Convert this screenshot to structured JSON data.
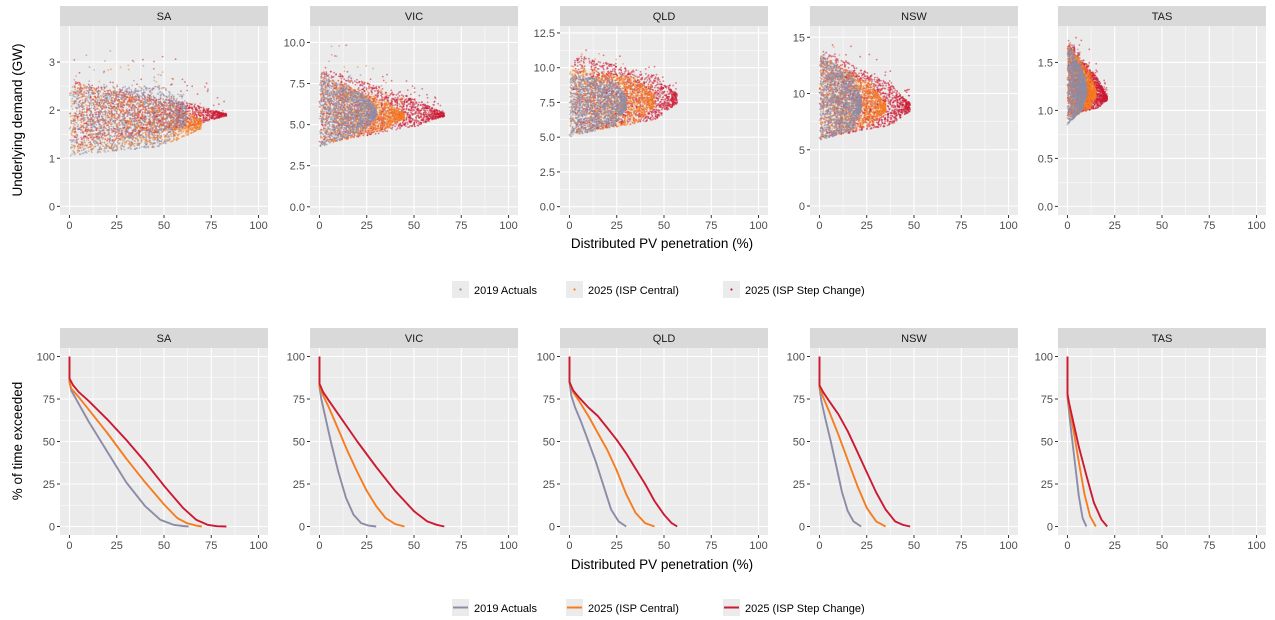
{
  "colors": {
    "2019 Actuals": "#8c8ca8",
    "2025 (ISP Central)": "#f57c20",
    "2025 (ISP Step Change)": "#cc1a33",
    "panel_bg": "#ebebeb",
    "strip_bg": "#d9d9d9",
    "grid": "#ffffff"
  },
  "chart_data": [
    {
      "type": "scatter",
      "xlabel": "Distributed PV penetration (%)",
      "ylabel": "Underlying demand (GW)",
      "x_ticks": [
        0,
        25,
        50,
        75,
        100
      ],
      "xlim": [
        -5,
        105
      ],
      "legend": {
        "placement": "bottom",
        "entries": [
          "2019 Actuals",
          "2025 (ISP Central)",
          "2025 (ISP Step Change)"
        ]
      },
      "facets": [
        {
          "name": "SA",
          "ylim": [
            -0.18,
            3.75
          ],
          "y_ticks": [
            "0",
            "1",
            "2",
            "3"
          ],
          "y_tick_values": [
            0,
            1,
            2,
            3
          ],
          "series": [
            {
              "name": "2019 Actuals",
              "x_range": [
                0,
                62
              ],
              "y_low": [
                1.05,
                1.3
              ],
              "y_high": [
                2.5,
                2.5
              ],
              "peak": 3.45
            },
            {
              "name": "2025 (ISP Central)",
              "x_range": [
                0,
                70
              ],
              "y_low": [
                1.1,
                1.4
              ],
              "y_high": [
                2.6,
                2.0
              ],
              "peak": 3.4
            },
            {
              "name": "2025 (ISP Step Change)",
              "x_range": [
                2,
                83
              ],
              "y_low": [
                1.2,
                1.8
              ],
              "y_high": [
                2.6,
                2.0
              ],
              "peak": 3.6
            }
          ]
        },
        {
          "name": "VIC",
          "ylim": [
            -0.5,
            11.0
          ],
          "y_ticks": [
            "0.0",
            "2.5",
            "5.0",
            "7.5",
            "10.0"
          ],
          "y_tick_values": [
            0,
            2.5,
            5,
            7.5,
            10
          ],
          "series": [
            {
              "name": "2019 Actuals",
              "x_range": [
                0,
                30
              ],
              "y_low": [
                3.6,
                4.9
              ],
              "y_high": [
                8.0,
                6.5
              ],
              "peak": 10.4
            },
            {
              "name": "2025 (ISP Central)",
              "x_range": [
                0,
                45
              ],
              "y_low": [
                3.7,
                5.0
              ],
              "y_high": [
                8.0,
                6.0
              ],
              "peak": 10.0
            },
            {
              "name": "2025 (ISP Step Change)",
              "x_range": [
                0,
                66
              ],
              "y_low": [
                3.8,
                5.2
              ],
              "y_high": [
                8.5,
                6.0
              ],
              "peak": 10.4
            }
          ]
        },
        {
          "name": "QLD",
          "ylim": [
            -0.6,
            13.0
          ],
          "y_ticks": [
            "0.0",
            "2.5",
            "5.0",
            "7.5",
            "10.0",
            "12.5"
          ],
          "y_tick_values": [
            0,
            2.5,
            5,
            7.5,
            10,
            12.5
          ],
          "series": [
            {
              "name": "2019 Actuals",
              "x_range": [
                0,
                30
              ],
              "y_low": [
                5.0,
                6.0
              ],
              "y_high": [
                9.5,
                9.0
              ],
              "peak": 10.3
            },
            {
              "name": "2025 (ISP Central)",
              "x_range": [
                0,
                45
              ],
              "y_low": [
                5.2,
                6.2
              ],
              "y_high": [
                10.2,
                9.0
              ],
              "peak": 11.5
            },
            {
              "name": "2025 (ISP Step Change)",
              "x_range": [
                2,
                57
              ],
              "y_low": [
                5.3,
                6.5
              ],
              "y_high": [
                11.0,
                9.0
              ],
              "peak": 12.0
            }
          ]
        },
        {
          "name": "NSW",
          "ylim": [
            -0.8,
            16.0
          ],
          "y_ticks": [
            "0",
            "5",
            "10",
            "15"
          ],
          "y_tick_values": [
            0,
            5,
            10,
            15
          ],
          "series": [
            {
              "name": "2019 Actuals",
              "x_range": [
                0,
                22
              ],
              "y_low": [
                5.8,
                7.0
              ],
              "y_high": [
                13.5,
                11.0
              ],
              "peak": 14.0
            },
            {
              "name": "2025 (ISP Central)",
              "x_range": [
                0,
                35
              ],
              "y_low": [
                5.9,
                7.5
              ],
              "y_high": [
                13.5,
                10.0
              ],
              "peak": 14.6
            },
            {
              "name": "2025 (ISP Step Change)",
              "x_range": [
                0,
                48
              ],
              "y_low": [
                6.0,
                7.5
              ],
              "y_high": [
                14.0,
                10.0
              ],
              "peak": 14.9
            }
          ]
        },
        {
          "name": "TAS",
          "ylim": [
            -0.09,
            1.88
          ],
          "y_ticks": [
            "0.0",
            "0.5",
            "1.0",
            "1.5"
          ],
          "y_tick_values": [
            0,
            0.5,
            1,
            1.5
          ],
          "series": [
            {
              "name": "2019 Actuals",
              "x_range": [
                0,
                10
              ],
              "y_low": [
                0.85,
                1.05
              ],
              "y_high": [
                1.7,
                1.35
              ],
              "peak": 1.75
            },
            {
              "name": "2025 (ISP Central)",
              "x_range": [
                0,
                15
              ],
              "y_low": [
                0.9,
                1.05
              ],
              "y_high": [
                1.7,
                1.3
              ],
              "peak": 1.75
            },
            {
              "name": "2025 (ISP Step Change)",
              "x_range": [
                0,
                21
              ],
              "y_low": [
                0.95,
                1.05
              ],
              "y_high": [
                1.75,
                1.2
              ],
              "peak": 1.8
            }
          ]
        }
      ]
    },
    {
      "type": "line",
      "xlabel": "Distributed PV penetration (%)",
      "ylabel": "% of time exceeded",
      "x_ticks": [
        0,
        25,
        50,
        75,
        100
      ],
      "y_ticks": [
        0,
        25,
        50,
        75,
        100
      ],
      "xlim": [
        -5,
        105
      ],
      "ylim": [
        -5,
        105
      ],
      "legend": {
        "placement": "bottom",
        "entries": [
          "2019 Actuals",
          "2025 (ISP Central)",
          "2025 (ISP Step Change)"
        ]
      },
      "facets": [
        {
          "name": "SA",
          "series": [
            {
              "name": "2019 Actuals",
              "x": [
                0,
                0,
                1,
                5,
                10,
                20,
                30,
                40,
                48,
                55,
                60,
                63
              ],
              "y": [
                100,
                85,
                80,
                72,
                62,
                44,
                26,
                12,
                4,
                1,
                0.3,
                0
              ]
            },
            {
              "name": "2025 (ISP Central)",
              "x": [
                0,
                0,
                1,
                5,
                10,
                20,
                30,
                40,
                50,
                57,
                62,
                67,
                70
              ],
              "y": [
                100,
                85,
                81,
                76,
                69,
                55,
                40,
                26,
                13,
                5,
                2,
                0.5,
                0
              ]
            },
            {
              "name": "2025 (ISP Step Change)",
              "x": [
                0,
                0,
                2,
                5,
                10,
                20,
                30,
                40,
                50,
                60,
                67,
                73,
                78,
                83
              ],
              "y": [
                100,
                87,
                83,
                79,
                74,
                63,
                51,
                38,
                24,
                11,
                4,
                1,
                0.2,
                0
              ]
            }
          ]
        },
        {
          "name": "VIC",
          "series": [
            {
              "name": "2019 Actuals",
              "x": [
                0,
                0,
                1,
                3,
                6,
                10,
                14,
                18,
                22,
                26,
                30
              ],
              "y": [
                100,
                82,
                75,
                65,
                50,
                32,
                17,
                7,
                2,
                0.5,
                0
              ]
            },
            {
              "name": "2025 (ISP Central)",
              "x": [
                0,
                0,
                2,
                5,
                10,
                15,
                20,
                25,
                30,
                35,
                40,
                45
              ],
              "y": [
                100,
                82,
                77,
                70,
                57,
                44,
                32,
                21,
                12,
                5,
                1.5,
                0
              ]
            },
            {
              "name": "2025 (ISP Step Change)",
              "x": [
                0,
                0,
                2,
                5,
                10,
                20,
                30,
                40,
                50,
                57,
                62,
                66
              ],
              "y": [
                100,
                84,
                79,
                74,
                66,
                50,
                35,
                21,
                9,
                3,
                1,
                0
              ]
            }
          ]
        },
        {
          "name": "QLD",
          "series": [
            {
              "name": "2019 Actuals",
              "x": [
                0,
                0,
                1,
                3,
                6,
                10,
                14,
                18,
                22,
                26,
                30
              ],
              "y": [
                100,
                85,
                77,
                70,
                62,
                50,
                38,
                24,
                10,
                3,
                0
              ]
            },
            {
              "name": "2025 (ISP Central)",
              "x": [
                0,
                0,
                2,
                5,
                10,
                15,
                20,
                25,
                30,
                35,
                40,
                45
              ],
              "y": [
                100,
                85,
                79,
                74,
                65,
                55,
                45,
                33,
                19,
                8,
                2,
                0
              ]
            },
            {
              "name": "2025 (ISP Step Change)",
              "x": [
                0,
                0,
                2,
                5,
                10,
                15,
                20,
                25,
                30,
                35,
                40,
                45,
                50,
                54,
                57
              ],
              "y": [
                100,
                85,
                80,
                76,
                70,
                65,
                58,
                51,
                43,
                34,
                25,
                15,
                7,
                2,
                0
              ]
            }
          ]
        },
        {
          "name": "NSW",
          "series": [
            {
              "name": "2019 Actuals",
              "x": [
                0,
                0,
                1,
                3,
                6,
                9,
                12,
                15,
                18,
                22
              ],
              "y": [
                100,
                82,
                74,
                64,
                50,
                35,
                20,
                9,
                3,
                0
              ]
            },
            {
              "name": "2025 (ISP Central)",
              "x": [
                0,
                0,
                2,
                5,
                10,
                15,
                20,
                25,
                30,
                35
              ],
              "y": [
                100,
                82,
                76,
                68,
                54,
                39,
                24,
                11,
                3,
                0
              ]
            },
            {
              "name": "2025 (ISP Step Change)",
              "x": [
                0,
                0,
                2,
                5,
                10,
                15,
                20,
                25,
                30,
                35,
                40,
                44,
                48
              ],
              "y": [
                100,
                83,
                79,
                74,
                66,
                56,
                44,
                32,
                20,
                10,
                3,
                1,
                0
              ]
            }
          ]
        },
        {
          "name": "TAS",
          "series": [
            {
              "name": "2019 Actuals",
              "x": [
                0,
                0,
                1,
                2,
                4,
                6,
                8,
                10
              ],
              "y": [
                100,
                76,
                66,
                56,
                37,
                18,
                5,
                0
              ]
            },
            {
              "name": "2025 (ISP Central)",
              "x": [
                0,
                0,
                1,
                3,
                6,
                9,
                12,
                15
              ],
              "y": [
                100,
                77,
                70,
                58,
                38,
                19,
                6,
                0
              ]
            },
            {
              "name": "2025 (ISP Step Change)",
              "x": [
                0,
                0,
                1,
                3,
                6,
                10,
                14,
                18,
                21
              ],
              "y": [
                100,
                78,
                72,
                62,
                47,
                30,
                14,
                4,
                0
              ]
            }
          ]
        }
      ]
    }
  ]
}
